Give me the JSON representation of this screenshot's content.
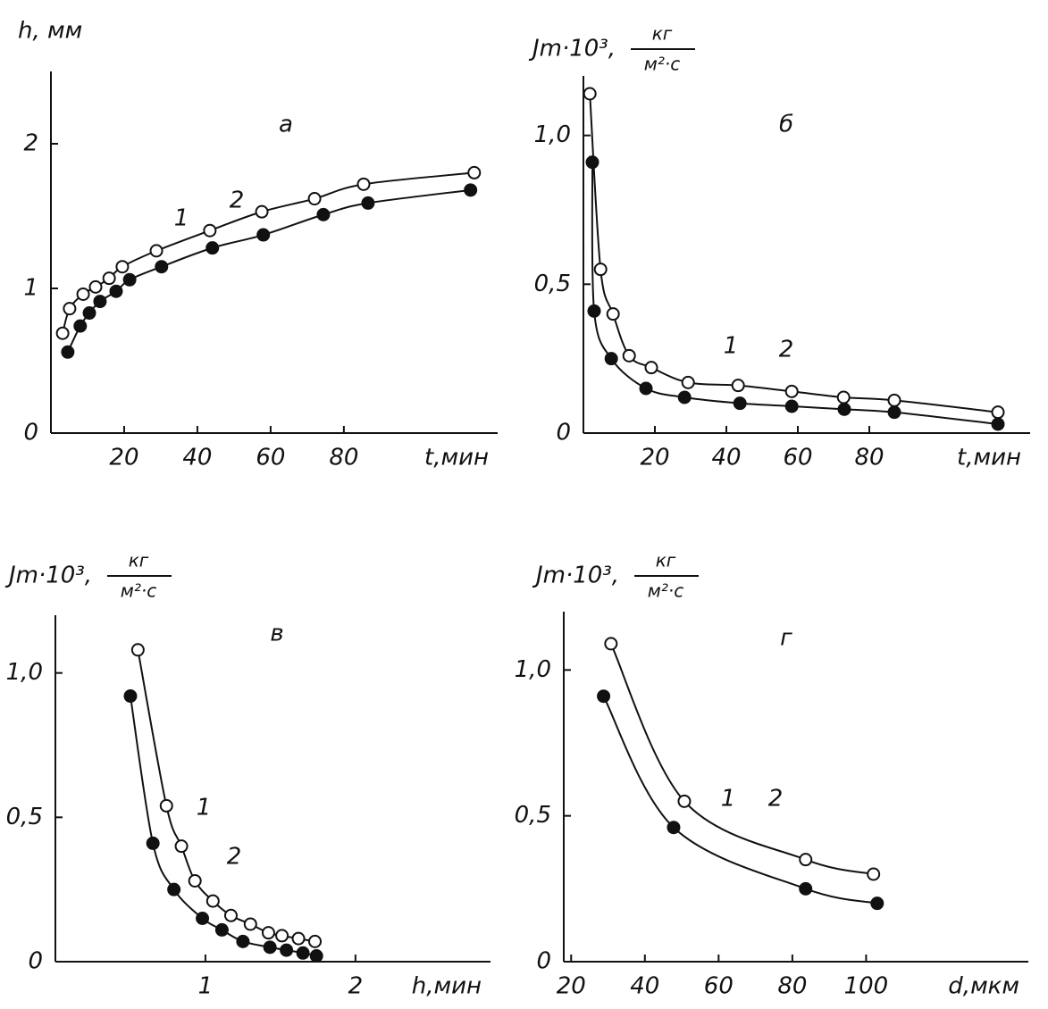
{
  "chart_data": [
    {
      "type": "scatter",
      "panel": "а",
      "ylabel": "h, мм",
      "xlabel": "t,мин",
      "xlim": [
        0,
        122
      ],
      "ylim": [
        0,
        2.5
      ],
      "xticks": [
        20,
        40,
        60,
        80
      ],
      "yticks": [
        0,
        1,
        2
      ],
      "series": [
        {
          "name": "1",
          "marker": "open",
          "color": "#111111",
          "x": [
            3.2,
            5.1,
            8.8,
            12.2,
            15.9,
            19.5,
            28.8,
            43.4,
            57.6,
            72,
            85.4,
            115.6
          ],
          "values": [
            0.69,
            0.86,
            0.96,
            1.01,
            1.07,
            1.15,
            1.26,
            1.4,
            1.53,
            1.62,
            1.72,
            1.8
          ]
        },
        {
          "name": "2",
          "marker": "filled",
          "color": "#111111",
          "x": [
            4.6,
            8,
            10.5,
            13.4,
            17.8,
            21.5,
            30.2,
            44.1,
            58,
            74.4,
            86.6,
            114.6
          ],
          "values": [
            0.56,
            0.74,
            0.83,
            0.91,
            0.98,
            1.06,
            1.15,
            1.28,
            1.37,
            1.51,
            1.59,
            1.68
          ]
        }
      ]
    },
    {
      "type": "scatter",
      "panel": "б",
      "ylabel": "Jm·10³,",
      "ylabel_num": "кг",
      "ylabel_den": "м²·с",
      "xlabel": "t,мин",
      "xlim": [
        0,
        125
      ],
      "ylim": [
        0,
        1.2
      ],
      "xticks": [
        20,
        40,
        60,
        80
      ],
      "yticks": [
        0,
        {
          "value": 0.5,
          "label": "0,5"
        },
        {
          "value": 1,
          "label": "1,0"
        }
      ],
      "series": [
        {
          "name": "1",
          "marker": "open",
          "color": "#111111",
          "x": [
            1.8,
            4.8,
            8.3,
            12.8,
            19,
            29.3,
            43.3,
            58.3,
            72.8,
            87,
            116
          ],
          "values": [
            1.14,
            0.55,
            0.4,
            0.26,
            0.22,
            0.17,
            0.16,
            0.14,
            0.12,
            0.11,
            0.07
          ]
        },
        {
          "name": "2",
          "marker": "filled",
          "color": "#111111",
          "x": [
            2.5,
            3,
            7.8,
            17.5,
            28.3,
            43.8,
            58.3,
            73,
            87,
            116
          ],
          "values": [
            0.91,
            0.41,
            0.25,
            0.15,
            0.12,
            0.1,
            0.09,
            0.08,
            0.07,
            0.03
          ]
        }
      ]
    },
    {
      "type": "scatter",
      "panel": "в",
      "ylabel": "Jm·10³,",
      "ylabel_num": "кг",
      "ylabel_den": "м²·с",
      "xlabel": "h,мин",
      "xlim": [
        0,
        2.9
      ],
      "ylim": [
        0,
        1.2
      ],
      "xticks": [
        1,
        2
      ],
      "yticks": [
        0,
        {
          "value": 0.5,
          "label": "0,5"
        },
        {
          "value": 1,
          "label": "1,0"
        }
      ],
      "series": [
        {
          "name": "1",
          "marker": "open",
          "color": "#111111",
          "x": [
            0.55,
            0.74,
            0.84,
            0.93,
            1.05,
            1.17,
            1.3,
            1.42,
            1.51,
            1.62,
            1.73
          ],
          "values": [
            1.08,
            0.54,
            0.4,
            0.28,
            0.21,
            0.16,
            0.13,
            0.1,
            0.09,
            0.08,
            0.07
          ]
        },
        {
          "name": "2",
          "marker": "filled",
          "color": "#111111",
          "x": [
            0.5,
            0.65,
            0.79,
            0.98,
            1.11,
            1.25,
            1.43,
            1.54,
            1.65,
            1.74
          ],
          "values": [
            0.92,
            0.41,
            0.25,
            0.15,
            0.11,
            0.07,
            0.05,
            0.04,
            0.03,
            0.02
          ]
        }
      ]
    },
    {
      "type": "scatter",
      "panel": "г",
      "ylabel": "Jm·10³,",
      "ylabel_num": "кг",
      "ylabel_den": "м²·с",
      "xlabel": "d,мкм",
      "xlim": [
        18,
        144
      ],
      "ylim": [
        0,
        1.2
      ],
      "xticks": [
        20,
        40,
        60,
        80,
        100
      ],
      "yticks": [
        0,
        {
          "value": 0.5,
          "label": "0,5"
        },
        {
          "value": 1,
          "label": "1,0"
        }
      ],
      "series": [
        {
          "name": "1",
          "marker": "open",
          "color": "#111111",
          "x": [
            30.8,
            50.7,
            83.6,
            102
          ],
          "values": [
            1.09,
            0.55,
            0.35,
            0.3
          ]
        },
        {
          "name": "2",
          "marker": "filled",
          "color": "#111111",
          "x": [
            28.8,
            47.8,
            83.6,
            103
          ],
          "values": [
            0.91,
            0.46,
            0.25,
            0.2
          ]
        }
      ]
    }
  ]
}
